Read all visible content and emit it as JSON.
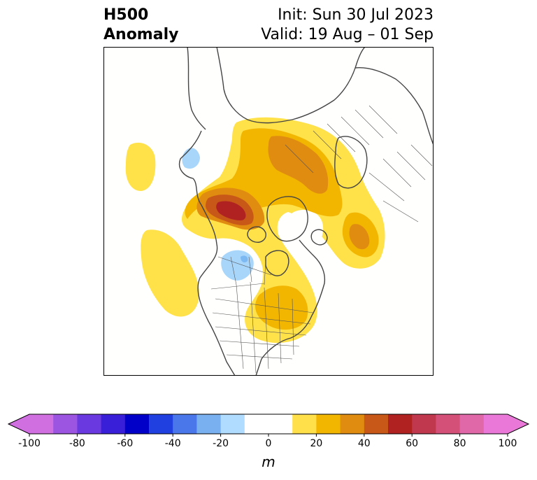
{
  "title": {
    "left_line1": "H500",
    "left_line2": "Anomaly",
    "right_line1": "Init: Sun 30 Jul 2023",
    "right_line2": "Valid: 19 Aug – 01 Sep"
  },
  "colorbar": {
    "unit": "m",
    "tick_labels": [
      "-100",
      "-80",
      "-60",
      "-40",
      "-20",
      "0",
      "20",
      "40",
      "60",
      "80",
      "100"
    ],
    "colors": [
      "#d070e0",
      "#9b55e0",
      "#6a3ae0",
      "#3a1fd8",
      "#0000c8",
      "#2040e0",
      "#4a78ea",
      "#78b0f0",
      "#b0dcff",
      "#ffffff",
      "#ffffff",
      "#ffe04a",
      "#f2b600",
      "#e08c10",
      "#c85818",
      "#b02222",
      "#c0384e",
      "#d45078",
      "#e068a8",
      "#ea78d8"
    ],
    "under_color": "#d070e0",
    "over_color": "#ea78d8"
  }
}
